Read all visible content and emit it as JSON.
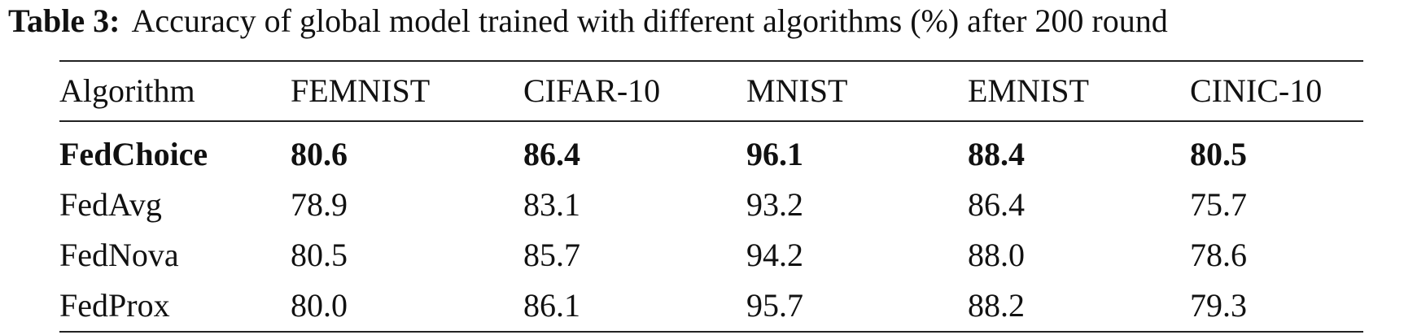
{
  "table": {
    "caption": {
      "label": "Table 3:",
      "text": "Accuracy of global model trained with different algorithms (%) after 200 round"
    },
    "header": [
      "Algorithm",
      "FEMNIST",
      "CIFAR-10",
      "MNIST",
      "EMNIST",
      "CINIC-10"
    ],
    "rows": [
      [
        "FedChoice",
        "80.6",
        "86.4",
        "96.1",
        "88.4",
        "80.5"
      ],
      [
        "FedAvg",
        "78.9",
        "83.1",
        "93.2",
        "86.4",
        "75.7"
      ],
      [
        "FedNova",
        "80.5",
        "85.7",
        "94.2",
        "88.0",
        "78.6"
      ],
      [
        "FedProx",
        "80.0",
        "86.1",
        "95.7",
        "88.2",
        "79.3"
      ]
    ]
  }
}
